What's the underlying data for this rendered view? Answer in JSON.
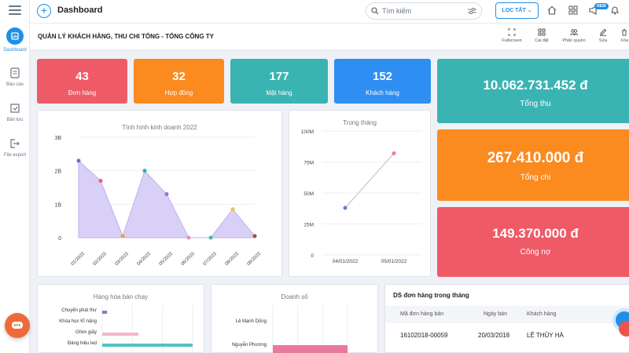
{
  "colors": {
    "accent": "#1e90e6",
    "red": "#ef5a67",
    "orange": "#fb8a1f",
    "teal": "#39b4b3",
    "blue": "#2f8ef2",
    "purple_fill": "#d8d0f7"
  },
  "sidebar": {
    "items": [
      {
        "label": "Dashboard",
        "icon": "dashboard-icon"
      },
      {
        "label": "Báo cáo",
        "icon": "report-icon"
      },
      {
        "label": "Bản lưu",
        "icon": "saved-icon"
      },
      {
        "label": "File export",
        "icon": "export-icon"
      }
    ]
  },
  "topbar": {
    "title": "Dashboard",
    "search_placeholder": "Tìm kiếm",
    "filter_label": "LỌC TẤT",
    "badge": "NEW"
  },
  "subbar": {
    "heading": "QUẢN LÝ KHÁCH HÀNG, THU CHI TỔNG - TỔNG CÔNG TY",
    "tools": [
      "Fullscreen",
      "Cài đặt",
      "Phân quyền",
      "Sửa",
      "Xóa"
    ]
  },
  "stats_small": [
    {
      "value": "43",
      "label": "Đơn hàng"
    },
    {
      "value": "32",
      "label": "Hợp đồng"
    },
    {
      "value": "177",
      "label": "Mặt hàng"
    },
    {
      "value": "152",
      "label": "Khách hàng"
    }
  ],
  "stats_big": [
    {
      "value": "10.062.731.452 đ",
      "label": "Tổng thu"
    },
    {
      "value": "267.410.000 đ",
      "label": "Tổng chi"
    },
    {
      "value": "149.370.000 đ",
      "label": "Công nợ"
    }
  ],
  "chart_data": [
    {
      "type": "area",
      "title": "Tình hình kinh doanh 2022",
      "categories": [
        "01/2022",
        "02/2022",
        "03/2022",
        "04/2022",
        "05/2022",
        "06/2022",
        "07/2022",
        "08/2022",
        "09/2022"
      ],
      "values": [
        2.3,
        1.7,
        0.05,
        2.0,
        1.3,
        0.0,
        0.0,
        0.85,
        0.05
      ],
      "yticks": [
        "0",
        "1B",
        "2B",
        "3B"
      ],
      "ylim": [
        0,
        3
      ],
      "point_colors": [
        "#7b68c8",
        "#e25c8a",
        "#f0a030",
        "#2bb3a3",
        "#9a6fd0",
        "#e88cbf",
        "#3dbf9a",
        "#e6c83a",
        "#a0522d"
      ]
    },
    {
      "type": "line",
      "title": "Trong tháng",
      "categories": [
        "04/01/2022",
        "05/01/2022"
      ],
      "values": [
        38,
        82
      ],
      "yticks": [
        "0",
        "25M",
        "50M",
        "75M",
        "100M"
      ],
      "ylim": [
        0,
        100
      ],
      "point_colors": [
        "#5a7fd6",
        "#e87d90"
      ]
    },
    {
      "type": "bar",
      "orientation": "horizontal",
      "title": "Hàng hóa bán chạy",
      "categories": [
        "Chuyển phát thư",
        "Khóa học Kĩ năng",
        "Ghim giấy",
        "Đảng hiệu led"
      ],
      "values": [
        4,
        0,
        30,
        75
      ],
      "colors": [
        "#8e7cc3",
        "#8e7cc3",
        "#f4b6c8",
        "#4fc3c0"
      ]
    },
    {
      "type": "bar",
      "orientation": "horizontal",
      "title": "Doanh số",
      "categories": [
        "Lê Mạnh Dũng",
        "Nguyễn Phương"
      ],
      "values": [
        0,
        100
      ],
      "colors": [
        "#e9799a",
        "#e9799a"
      ]
    }
  ],
  "orders": {
    "title": "DS đơn hàng trong tháng",
    "columns": [
      "Mã đơn hàng bán",
      "Ngày bán",
      "Khách hàng"
    ],
    "rows": [
      [
        "16102018-00059",
        "20/03/2018",
        "LÊ THỦY HÀ"
      ]
    ]
  }
}
